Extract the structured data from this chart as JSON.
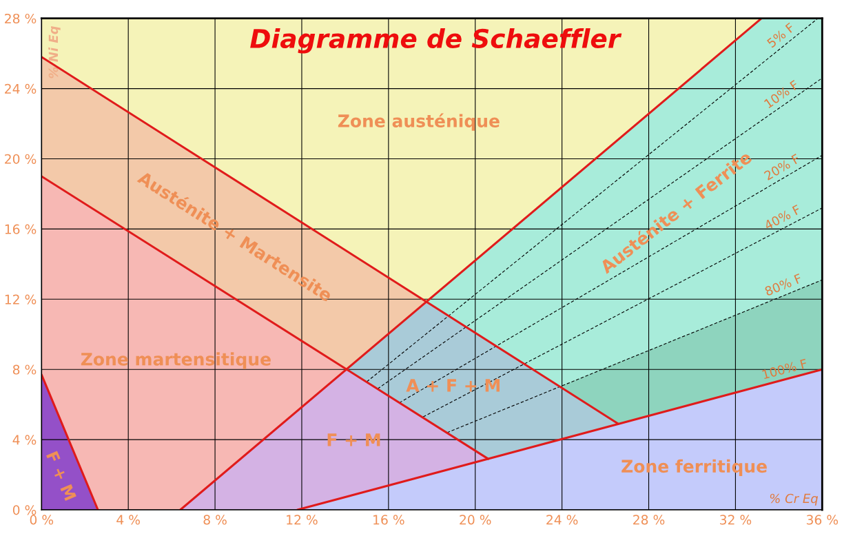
{
  "chart_data": {
    "type": "line",
    "title": "Diagramme de Schaeffler",
    "xlabel": "% Cr Eq",
    "ylabel": "% Ni Eq",
    "xlim": [
      0,
      36
    ],
    "ylim": [
      0,
      28
    ],
    "xticks": [
      {
        "value": 0,
        "label": "0 %"
      },
      {
        "value": 4,
        "label": "4 %"
      },
      {
        "value": 8,
        "label": "8 %"
      },
      {
        "value": 12,
        "label": "12 %"
      },
      {
        "value": 16,
        "label": "16 %"
      },
      {
        "value": 20,
        "label": "20 %"
      },
      {
        "value": 24,
        "label": "24 %"
      },
      {
        "value": 28,
        "label": "28 %"
      },
      {
        "value": 32,
        "label": "32 %"
      },
      {
        "value": 36,
        "label": "36 %"
      }
    ],
    "yticks": [
      {
        "value": 0,
        "label": "0 %"
      },
      {
        "value": 4,
        "label": "4 %"
      },
      {
        "value": 8,
        "label": "8 %"
      },
      {
        "value": 12,
        "label": "12 %"
      },
      {
        "value": 16,
        "label": "16 %"
      },
      {
        "value": 20,
        "label": "20 %"
      },
      {
        "value": 24,
        "label": "24 %"
      },
      {
        "value": 28,
        "label": "28 %"
      }
    ],
    "grid": true,
    "legend": false,
    "marker": "none",
    "line_style": "solid",
    "series": [
      {
        "color": "#e01b1b",
        "x": [
          0,
          26.6
        ],
        "values": [
          25.8,
          4.9
        ]
      },
      {
        "color": "#e01b1b",
        "x": [
          0,
          20.6
        ],
        "values": [
          19.0,
          2.9
        ]
      },
      {
        "color": "#e01b1b",
        "x": [
          6.4,
          33.2
        ],
        "values": [
          0,
          28
        ]
      },
      {
        "name": "100% F",
        "color": "#e01b1b",
        "x": [
          11.8,
          36
        ],
        "values": [
          0,
          8.0
        ]
      },
      {
        "color": "#e01b1b",
        "x": [
          0,
          2.6
        ],
        "values": [
          7.7,
          0
        ]
      },
      {
        "name": "5% F",
        "color": "#000000",
        "line_style": "dashed",
        "x": [
          15.0,
          35.8
        ],
        "values": [
          7.3,
          28.0
        ]
      },
      {
        "name": "10% F",
        "color": "#000000",
        "line_style": "dashed",
        "x": [
          15.5,
          36
        ],
        "values": [
          6.9,
          24.6
        ]
      },
      {
        "name": "20% F",
        "color": "#000000",
        "line_style": "dashed",
        "x": [
          16.5,
          36
        ],
        "values": [
          6.1,
          20.2
        ]
      },
      {
        "name": "40% F",
        "color": "#000000",
        "line_style": "dashed",
        "x": [
          17.6,
          36
        ],
        "values": [
          5.3,
          17.2
        ]
      },
      {
        "name": "80% F",
        "color": "#000000",
        "line_style": "dashed",
        "x": [
          18.7,
          36
        ],
        "values": [
          4.4,
          13.1
        ]
      }
    ],
    "annotations": [
      "Zone austénique",
      "Austénite + Martensite",
      "Zone martensitique",
      "F + M",
      "Austénite + Ferrite",
      "A + F + M",
      "F + M",
      "Zone ferritique"
    ]
  }
}
